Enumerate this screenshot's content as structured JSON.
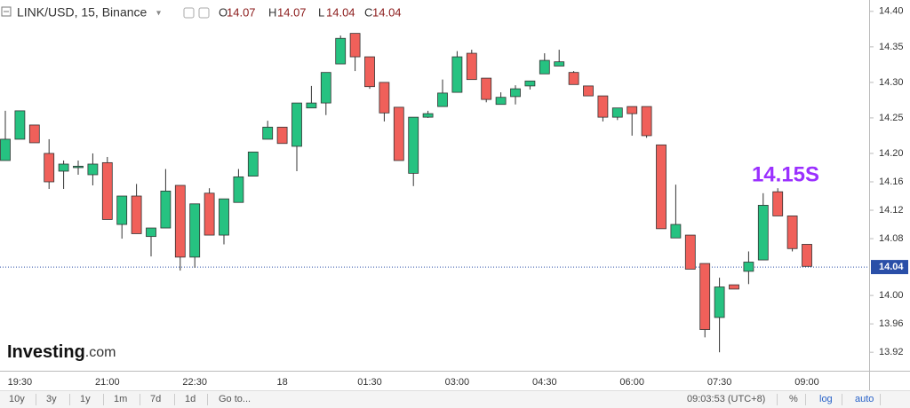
{
  "chart_data": {
    "type": "candlestick",
    "title": "LINK/USD, 15, Binance",
    "ohlc_legend": [
      {
        "label": "O",
        "value": 14.07
      },
      {
        "label": "H",
        "value": 14.07
      },
      {
        "label": "L",
        "value": 14.04
      },
      {
        "label": "C",
        "value": 14.04
      }
    ],
    "categories": [
      null,
      "19:30",
      null,
      null,
      null,
      null,
      null,
      "21:00",
      null,
      null,
      null,
      null,
      null,
      "22:30",
      null,
      null,
      null,
      null,
      null,
      "18",
      null,
      null,
      null,
      null,
      null,
      "01:30",
      null,
      null,
      null,
      null,
      null,
      "03:00",
      null,
      null,
      null,
      null,
      null,
      "04:30",
      null,
      null,
      null,
      null,
      null,
      "06:00",
      null,
      null,
      null,
      null,
      null,
      "07:30",
      null,
      null,
      null,
      null,
      null,
      "09:00"
    ],
    "open": [
      14.19,
      14.22,
      14.24,
      14.2,
      14.175,
      14.18,
      14.17,
      14.187,
      14.1,
      14.14,
      14.083,
      14.095,
      14.155,
      14.054,
      14.144,
      14.085,
      14.131,
      14.168,
      14.22,
      14.237,
      14.21,
      14.264,
      14.271,
      14.326,
      14.369,
      14.336,
      14.3,
      14.265,
      14.172,
      14.251,
      14.266,
      14.286,
      14.341,
      14.306,
      14.269,
      14.28,
      14.295,
      14.312,
      14.323,
      14.314,
      14.295,
      14.281,
      14.251,
      14.266,
      14.266,
      14.212,
      14.081,
      14.085,
      14.045,
      13.969,
      14.015,
      14.034,
      14.05,
      14.146,
      14.112,
      14.072
    ],
    "high": [
      14.26,
      14.26,
      14.24,
      14.22,
      14.19,
      14.19,
      14.2,
      14.195,
      14.14,
      14.157,
      14.095,
      14.178,
      14.155,
      14.129,
      14.151,
      14.136,
      14.178,
      14.202,
      14.246,
      14.237,
      14.271,
      14.295,
      14.314,
      14.366,
      14.369,
      14.336,
      14.3,
      14.265,
      14.251,
      14.26,
      14.304,
      14.344,
      14.346,
      14.306,
      14.286,
      14.296,
      14.302,
      14.341,
      14.346,
      14.316,
      14.295,
      14.281,
      14.264,
      14.266,
      14.266,
      14.212,
      14.156,
      14.085,
      14.045,
      14.025,
      14.015,
      14.062,
      14.144,
      14.151,
      14.112,
      14.072
    ],
    "low": [
      14.19,
      14.22,
      14.215,
      14.15,
      14.15,
      14.17,
      14.155,
      14.107,
      14.08,
      14.087,
      14.055,
      14.095,
      14.035,
      14.039,
      14.085,
      14.072,
      14.131,
      14.168,
      14.22,
      14.214,
      14.175,
      14.264,
      14.254,
      14.326,
      14.316,
      14.291,
      14.245,
      14.19,
      14.154,
      14.25,
      14.266,
      14.286,
      14.304,
      14.272,
      14.269,
      14.269,
      14.29,
      14.312,
      14.323,
      14.297,
      14.281,
      14.245,
      14.247,
      14.225,
      14.222,
      14.094,
      14.081,
      14.037,
      13.941,
      13.92,
      14.009,
      14.016,
      14.05,
      14.112,
      14.062,
      14.041
    ],
    "close": [
      14.22,
      14.26,
      14.215,
      14.16,
      14.185,
      14.182,
      14.185,
      14.107,
      14.14,
      14.087,
      14.095,
      14.147,
      14.054,
      14.129,
      14.085,
      14.136,
      14.167,
      14.202,
      14.237,
      14.214,
      14.271,
      14.271,
      14.314,
      14.362,
      14.336,
      14.294,
      14.257,
      14.19,
      14.251,
      14.256,
      14.285,
      14.336,
      14.304,
      14.276,
      14.279,
      14.291,
      14.302,
      14.331,
      14.329,
      14.297,
      14.281,
      14.251,
      14.264,
      14.256,
      14.225,
      14.094,
      14.1,
      14.037,
      13.952,
      14.012,
      14.009,
      14.047,
      14.127,
      14.112,
      14.066,
      14.041
    ],
    "up_color": "#26c281",
    "down_color": "#f0605a",
    "ylim": [
      13.894,
      14.416
    ],
    "yticks": [
      {
        "value": 14.4,
        "label": "14.40"
      },
      14.35,
      {
        "value": 14.3,
        "label": "14.30"
      },
      14.25,
      {
        "value": 14.2,
        "label": "14.20"
      },
      14.16,
      14.12,
      14.08,
      {
        "value": 14.0,
        "label": "14.00"
      },
      13.96,
      13.92
    ],
    "last_price": 14.04,
    "last_price_color": "#2a4fa8",
    "annotation": "14.15S",
    "annotation_color": "#9b30ff",
    "grid": false
  },
  "logo": {
    "brand": "Investing",
    "suffix": ".com"
  },
  "toolbar": {
    "ranges": [
      "10y",
      "3y",
      "1y",
      "1m",
      "7d",
      "1d"
    ],
    "goto": "Go to...",
    "time": "09:03:53 (UTC+8)",
    "percent": "%",
    "log": "log",
    "auto": "auto"
  }
}
